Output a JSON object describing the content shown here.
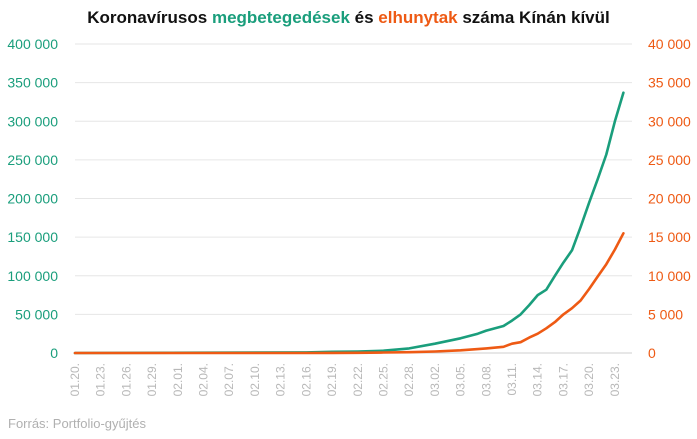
{
  "chart_data": {
    "type": "line",
    "title_parts": [
      {
        "text": "Koronavírusos ",
        "color": "#111111"
      },
      {
        "text": "megbetegedések",
        "color": "#1a9e7c"
      },
      {
        "text": " és ",
        "color": "#111111"
      },
      {
        "text": "elhunytak",
        "color": "#ee5a14"
      },
      {
        "text": " száma Kínán kívül",
        "color": "#111111"
      }
    ],
    "source": "Forrás: Portfolio-gyűjtés",
    "x_tick_labels": [
      "01.20.",
      "01.23.",
      "01.26.",
      "01.29.",
      "02.01.",
      "02.04.",
      "02.07.",
      "02.10.",
      "02.13.",
      "02.16.",
      "02.19.",
      "02.22.",
      "02.25.",
      "02.28.",
      "03.02.",
      "03.05.",
      "03.08.",
      "03.11.",
      "03.14.",
      "03.17.",
      "03.20.",
      "03.23."
    ],
    "x_tick_every_days": 3,
    "y_left": {
      "min": 0,
      "max": 400000,
      "ticks": [
        "0",
        "50 000",
        "100 000",
        "150 000",
        "200 000",
        "250 000",
        "300 000",
        "350 000",
        "400 000"
      ],
      "color": "#1a9e7c"
    },
    "y_right": {
      "min": 0,
      "max": 40000,
      "ticks": [
        "0",
        "5 000",
        "10 000",
        "15 000",
        "20 000",
        "25 000",
        "30 000",
        "35 000",
        "40 000"
      ],
      "color": "#ee5a14"
    },
    "grid": true,
    "series": [
      {
        "axis": "left",
        "color": "#1a9e7c",
        "x": [
          "01.20.",
          "02.16.",
          "02.19.",
          "02.22.",
          "02.25.",
          "02.28.",
          "03.02.",
          "03.05.",
          "03.07.",
          "03.08.",
          "03.10.",
          "03.11.",
          "03.12.",
          "03.13.",
          "03.14.",
          "03.15.",
          "03.16.",
          "03.17.",
          "03.18.",
          "03.19.",
          "03.20.",
          "03.21.",
          "03.22.",
          "03.23.",
          "03.24."
        ],
        "values": [
          0,
          800,
          1500,
          2000,
          3000,
          6000,
          12000,
          19000,
          25000,
          29000,
          35000,
          42000,
          50000,
          62000,
          75000,
          82000,
          100000,
          117000,
          133000,
          163000,
          195000,
          225000,
          257000,
          300000,
          337000
        ]
      },
      {
        "axis": "right",
        "color": "#ee5a14",
        "x": [
          "01.20.",
          "02.16.",
          "02.19.",
          "02.22.",
          "02.25.",
          "02.28.",
          "03.02.",
          "03.05.",
          "03.07.",
          "03.08.",
          "03.10.",
          "03.11.",
          "03.12.",
          "03.13.",
          "03.14.",
          "03.15.",
          "03.16.",
          "03.17.",
          "03.18.",
          "03.19.",
          "03.20.",
          "03.21.",
          "03.22.",
          "03.23.",
          "03.24."
        ],
        "values": [
          0,
          0,
          10,
          30,
          60,
          100,
          200,
          350,
          500,
          600,
          800,
          1200,
          1400,
          2000,
          2500,
          3200,
          4000,
          5000,
          5800,
          6800,
          8300,
          9900,
          11500,
          13400,
          15500
        ]
      }
    ]
  }
}
